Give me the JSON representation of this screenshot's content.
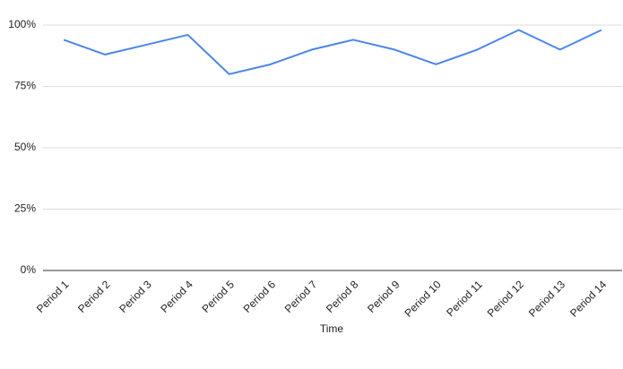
{
  "chart_data": {
    "type": "line",
    "x_label": "Time",
    "categories": [
      "Period 1",
      "Period 2",
      "Period 3",
      "Period 4",
      "Period 5",
      "Period 6",
      "Period 7",
      "Period 8",
      "Period 9",
      "Period 10",
      "Period 11",
      "Period 12",
      "Period 13",
      "Period 14"
    ],
    "series": [
      {
        "name": null,
        "color": "#4a86e8",
        "values": [
          94,
          88,
          92,
          96,
          80,
          84,
          90,
          94,
          90,
          84,
          90,
          98,
          90,
          98
        ]
      }
    ],
    "ylim": [
      0,
      100
    ],
    "yticks": [
      {
        "value": 0,
        "label": "0%"
      },
      {
        "value": 25,
        "label": "25%"
      },
      {
        "value": 50,
        "label": "50%"
      },
      {
        "value": 75,
        "label": "75%"
      },
      {
        "value": 100,
        "label": "100%"
      }
    ],
    "grid": true
  }
}
